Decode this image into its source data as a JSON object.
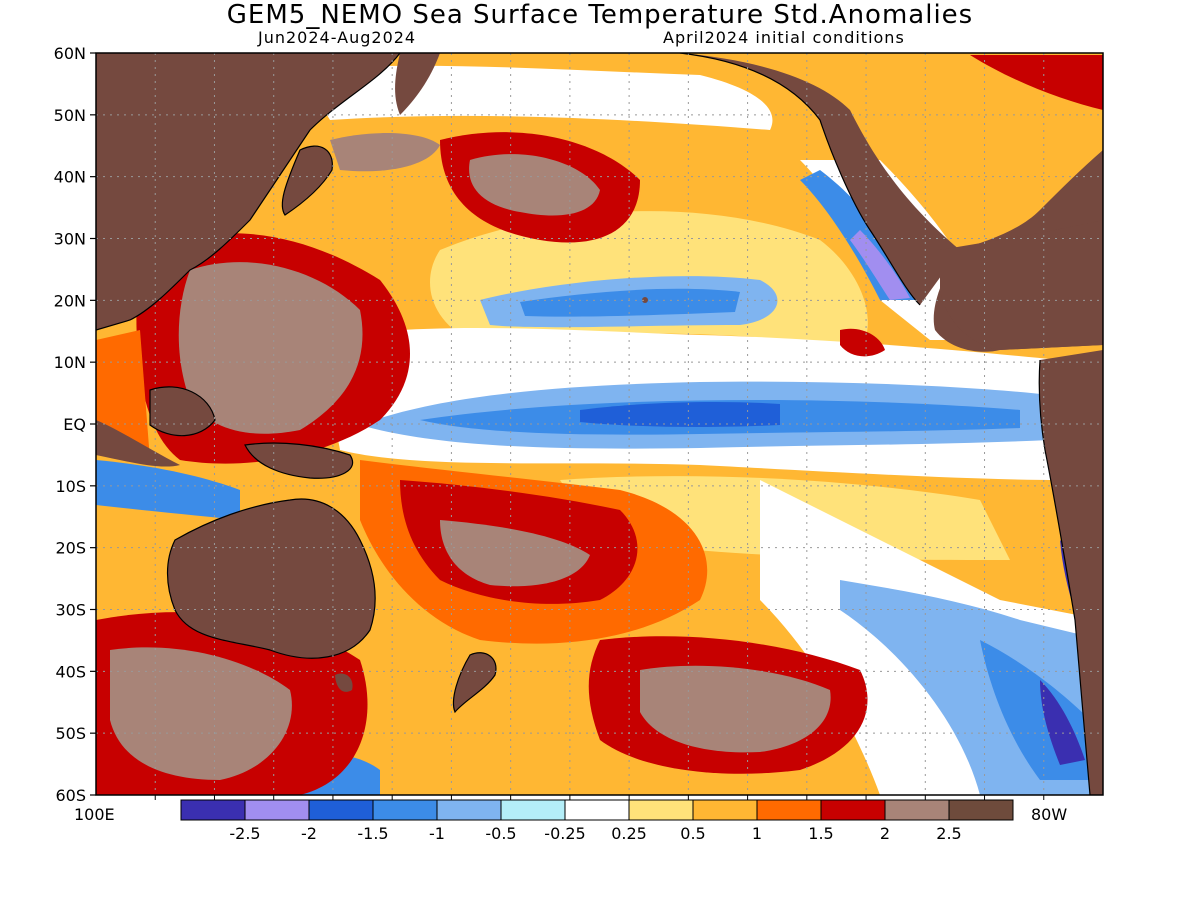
{
  "header": {
    "title": "GEM5_NEMO Sea Surface Temperature Std.Anomalies",
    "period": "Jun2024-Aug2024",
    "init": "April2024 initial conditions"
  },
  "axes": {
    "lat_labels": [
      "60N",
      "50N",
      "40N",
      "30N",
      "20N",
      "10N",
      "EQ",
      "10S",
      "20S",
      "30S",
      "40S",
      "50S",
      "60S"
    ],
    "lon_left": "100E",
    "lon_right": "80W"
  },
  "colorbar": {
    "tick_labels": [
      "-2.5",
      "-2",
      "-1.5",
      "-1",
      "-0.5",
      "-0.25",
      "0.25",
      "0.5",
      "1",
      "1.5",
      "2",
      "2.5"
    ],
    "colors": [
      "#3a2fb0",
      "#a18ef0",
      "#1f5fd8",
      "#3c8ce8",
      "#7fb4f0",
      "#b4eef8",
      "#ffffff",
      "#ffe27a",
      "#ffb733",
      "#ff6a00",
      "#c70000",
      "#a88478",
      "#6e4b3c"
    ]
  },
  "palette": {
    "land": "#75493f",
    "ocean_base": "#ffb733",
    "cold": "#3c8ce8",
    "cool": "#7fb4f0",
    "warm": "#ff6a00",
    "hot": "#c70000",
    "extreme": "#a88478"
  }
}
